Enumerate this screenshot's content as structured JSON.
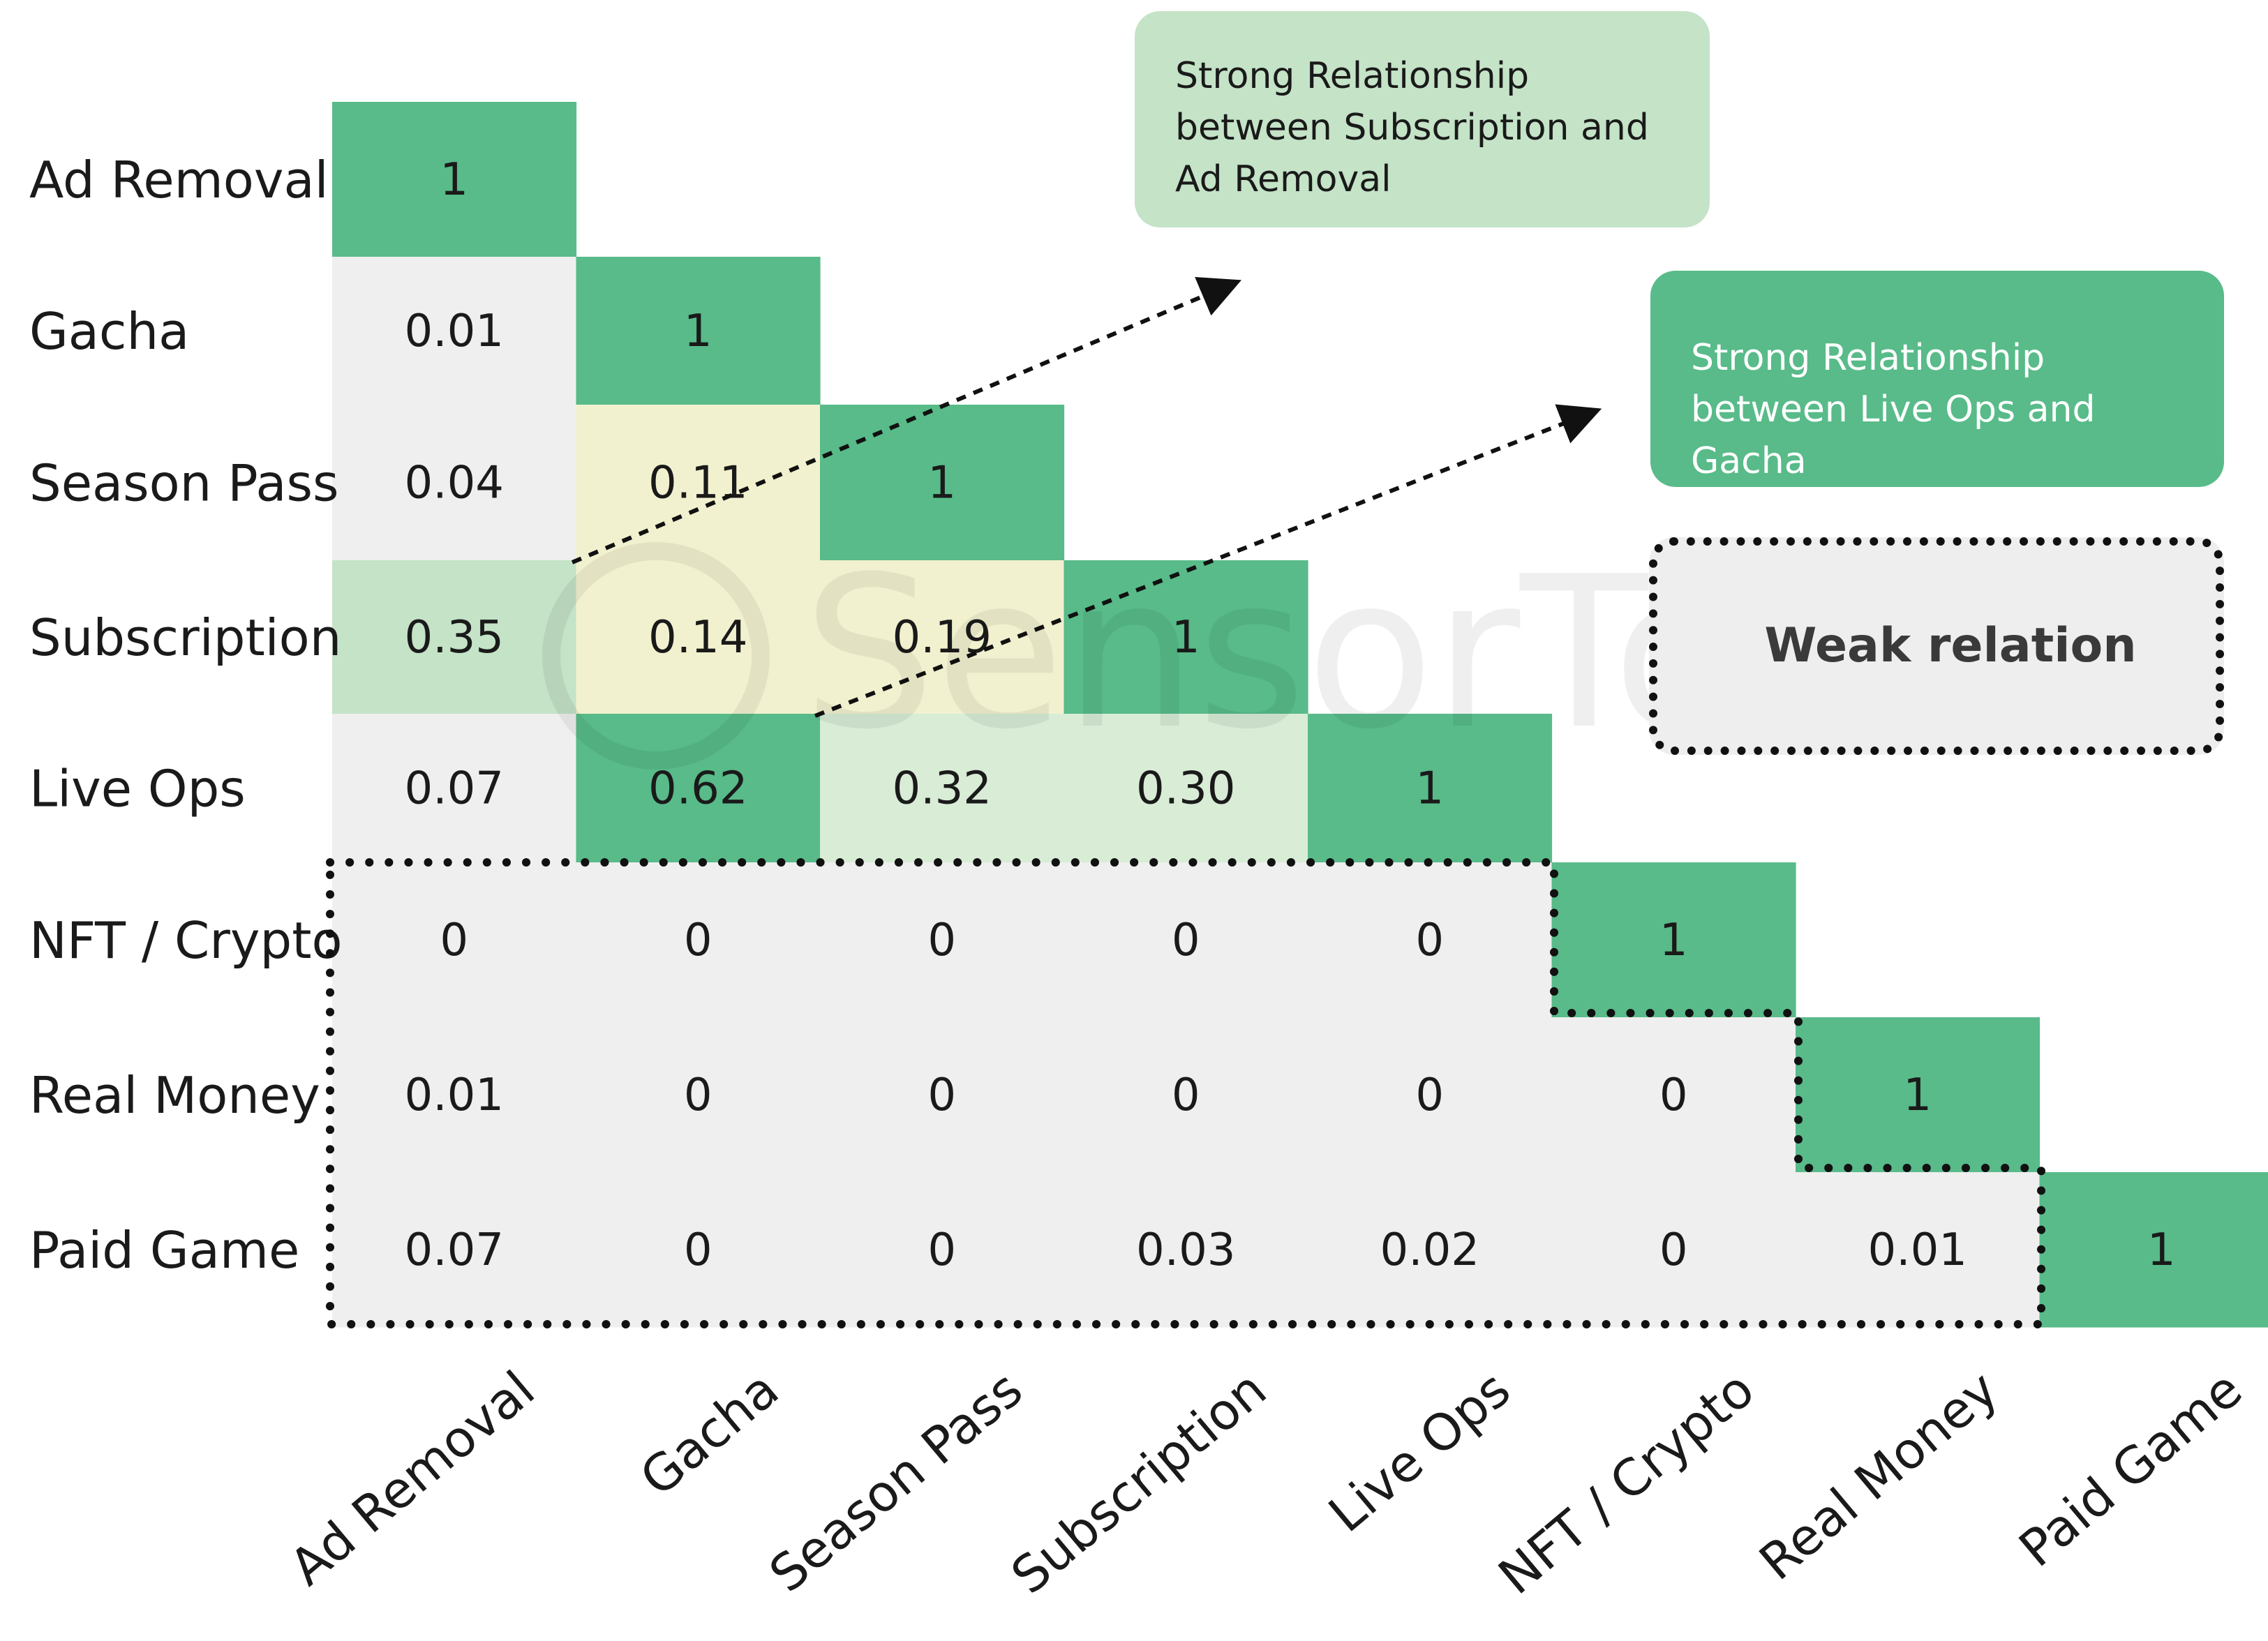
{
  "chart_data": {
    "type": "heatmap",
    "title": "",
    "xlabel": "",
    "ylabel": "",
    "rows": [
      "Ad Removal",
      "Gacha",
      "Season Pass",
      "Subscription",
      "Live Ops",
      "NFT / Crypto",
      "Real Money",
      "Paid Game"
    ],
    "columns": [
      "Ad Removal",
      "Gacha",
      "Season Pass",
      "Subscription",
      "Live Ops",
      "NFT / Crypto",
      "Real Money",
      "Paid Game"
    ],
    "values": [
      [
        "1"
      ],
      [
        "0.01",
        "1"
      ],
      [
        "0.04",
        "0.11",
        "1"
      ],
      [
        "0.35",
        "0.14",
        "0.19",
        "1"
      ],
      [
        "0.07",
        "0.62",
        "0.32",
        "0.30",
        "1"
      ],
      [
        "0",
        "0",
        "0",
        "0",
        "0",
        "1"
      ],
      [
        "0.01",
        "0",
        "0",
        "0",
        "0",
        "0",
        "1"
      ],
      [
        "0.07",
        "0",
        "0",
        "0.03",
        "0.02",
        "0",
        "0.01",
        "1"
      ]
    ],
    "colors": {
      "strong": "#58bb89",
      "medium": "#c4e3c7",
      "light": "#d8ecd6",
      "weak_yellow": "#f2f1cf",
      "none": "#efefef"
    },
    "annotations": [
      "Strong Relationship between Subscription and Ad Removal",
      "Strong Relationship between Live Ops and Gacha",
      "Weak relation"
    ],
    "watermark": "SensorTower"
  }
}
